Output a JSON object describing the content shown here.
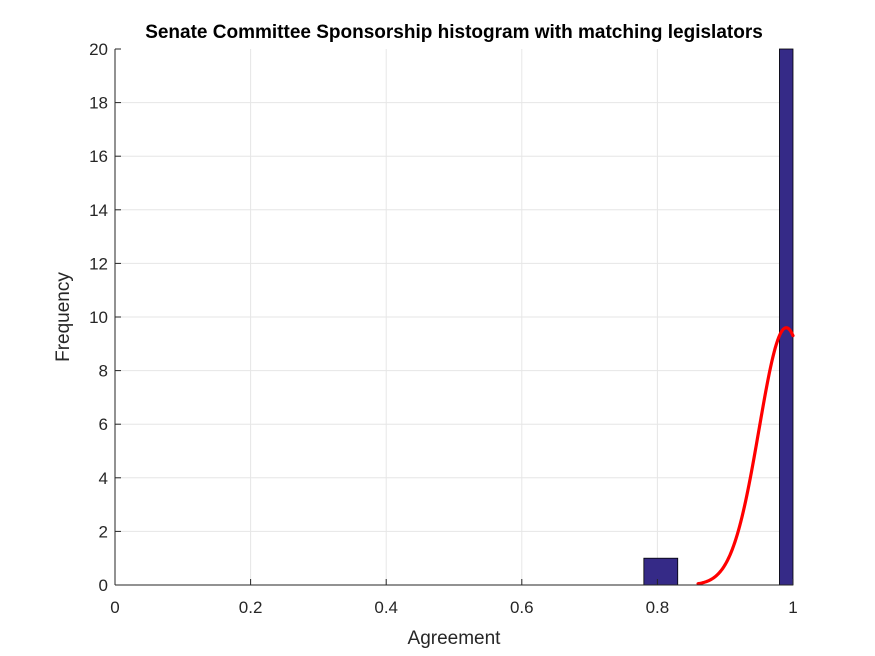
{
  "chart_data": {
    "type": "bar",
    "title": "Senate Committee Sponsorship histogram with matching legislators",
    "xlabel": "Agreement",
    "ylabel": "Frequency",
    "xlim": [
      0,
      1
    ],
    "ylim": [
      0,
      20
    ],
    "xticks": [
      "0",
      "0.2",
      "0.4",
      "0.6",
      "0.8",
      "1"
    ],
    "yticks": [
      "0",
      "2",
      "4",
      "6",
      "8",
      "10",
      "12",
      "14",
      "16",
      "18",
      "20"
    ],
    "grid": true,
    "bars": [
      {
        "x0": 0.78,
        "x1": 0.83,
        "value": 1
      },
      {
        "x0": 0.98,
        "x1": 1.0,
        "value": 20
      }
    ],
    "fit_curve": {
      "type": "normal-density",
      "color": "#ff0000",
      "x_start": 0.86,
      "x_end": 1.0,
      "mean": 0.99,
      "sd": 0.04,
      "peak": 9.6
    },
    "colors": {
      "bar": "#352a87",
      "bar_edge": "#000000",
      "curve": "#ff0000"
    }
  }
}
